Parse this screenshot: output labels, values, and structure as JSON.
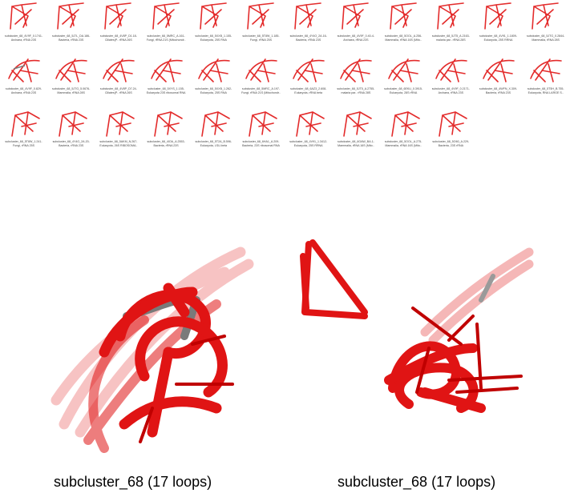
{
  "thumbnails": [
    {
      "line1": "subcluster_68_4V9F_0.1741-",
      "line2": "Archaea, rRNA 23S"
    },
    {
      "line1": "subcluster_68_5J7L_DA.186-",
      "line2": "Bacteria, rRNA 23S"
    },
    {
      "line1": "subcluster_68_4V8P_D1.18-",
      "line2": "Ciliates(P.. rRNA 26S"
    },
    {
      "line1": "subcluster_68_5MRC_A.161-",
      "line2": "Fungi, rRNA 21S (Mitochondr.."
    },
    {
      "line1": "subcluster_68_5XXB_1.155-",
      "line2": "Eukaryota, 25S RNA"
    },
    {
      "line1": "subcluster_68_5T8W_1.185-",
      "line2": "Fungi, rRNA 25S"
    },
    {
      "line1": "subcluster_68_4Y4O_2A.16-",
      "line2": "Bacteria, rRNA 23S"
    },
    {
      "line1": "subcluster_68_4V9F_0.40-4-",
      "line2": "Archaea, rRNA 23S"
    },
    {
      "line1": "subcluster_68_5OOL_A.256-",
      "line2": "Mammalia, rRNA 16S (Mito.."
    },
    {
      "line1": "subcluster_68_5JT5_A.2163-",
      "line2": "malaria par.. rRNA 28S"
    },
    {
      "line1": "subcluster_68_4V91_1.1809-",
      "line2": "Eukaryota, 25S RRNA"
    },
    {
      "line1": "subcluster_68_5JTG_0.2844-",
      "line2": "Mammalia, rRNA 28S"
    },
    {
      "line1": "subcluster_68_4V9F_0.829-",
      "line2": "Archaea, rRNA 23S"
    },
    {
      "line1": "subcluster_68_5JTG_5.0676-",
      "line2": "Mammalia, rRNA 28S"
    },
    {
      "line1": "subcluster_68_4V8P_D7.24-",
      "line2": "Ciliates(P.. rRNA 26S"
    },
    {
      "line1": "subcluster_68_5XYS_1.155-",
      "line2": "Eukaryota 23S ribosomal RNA"
    },
    {
      "line1": "subcluster_68_5XXB_1.262-",
      "line2": "Eukaryota, 25S RNA"
    },
    {
      "line1": "subcluster_68_5MRC_A.197-",
      "line2": "Fungi, rRNA 21S (Mitochondr.."
    },
    {
      "line1": "subcluster_68_6AZ3_2.608-",
      "line2": "Eukaryota, rRNA beta"
    },
    {
      "line1": "subcluster_68_5JT5_A.2755-",
      "line2": "malaria par.. rRNA 28S"
    },
    {
      "line1": "subcluster_68_6EKU_0.3915-",
      "line2": "Eukaryota, 28S rRNA"
    },
    {
      "line1": "subcluster_68_4V9F_0.2171-",
      "line2": "Archaea, rRNA 23S"
    },
    {
      "line1": "subcluster_68_4WFN_X.309-",
      "line2": "Bacteria, rRNA 23S"
    },
    {
      "line1": "subcluster_68_5T5H_B.755-",
      "line2": "Eukaryota, RNA LARGE S.."
    },
    {
      "line1": "subcluster_68_5T8W_1.241-",
      "line2": "Fungi, rRNA 25S"
    },
    {
      "line1": "subcluster_68_4Y4O_2A.20-",
      "line2": "Bacteria, rRNA 23S"
    },
    {
      "line1": "subcluster_68_5AKM_N.267-",
      "line2": "Eukaryota, 26S RIBOSOMA.."
    },
    {
      "line1": "subcluster_68_4IOA_A.2553-",
      "line2": "Bacteria, rRNA 23S"
    },
    {
      "line1": "subcluster_68_5T2A_B.596-",
      "line2": "Eukaryota, LSU-beta"
    },
    {
      "line1": "subcluster_68_6HA1_A.209-",
      "line2": "Bacteria, 23S ribosomal RNA"
    },
    {
      "line1": "subcluster_68_4V91_1.3412-",
      "line2": "Eukaryota, 25S RRNA"
    },
    {
      "line1": "subcluster_68_6GAW_BA.1-",
      "line2": "Mammalia, rRNA 16S (Mito.."
    },
    {
      "line1": "subcluster_68_5OOL_A.275-",
      "line2": "Mammalia, rRNA 16S (Mito.."
    },
    {
      "line1": "subcluster_68_5O60_A.229-",
      "line2": "Bacteria, 23S rRNA"
    }
  ],
  "panels": {
    "left_caption": "subcluster_68 (17 loops)",
    "right_caption": "subcluster_68 (17 loops)"
  },
  "colors": {
    "loop_red": "#e01414",
    "loop_grey": "#7a7a7a",
    "caption_text": "#444444"
  }
}
